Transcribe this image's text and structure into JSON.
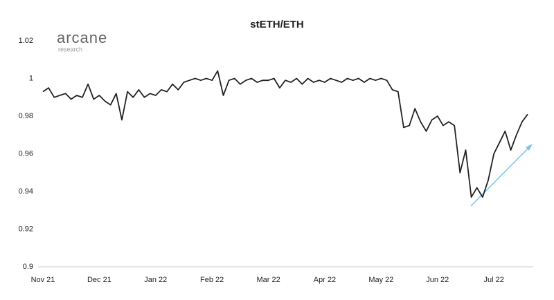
{
  "logo": {
    "name": "arcane",
    "sub": "research"
  },
  "chart_data": {
    "type": "line",
    "title": "stETH/ETH",
    "color": "#222222",
    "categories": [
      "Nov 21",
      null,
      null,
      null,
      null,
      null,
      null,
      null,
      null,
      null,
      "Dec 21",
      null,
      null,
      null,
      null,
      null,
      null,
      null,
      null,
      null,
      "Jan 22",
      null,
      null,
      null,
      null,
      null,
      null,
      null,
      null,
      null,
      "Feb 22",
      null,
      null,
      null,
      null,
      null,
      null,
      null,
      null,
      null,
      "Mar 22",
      null,
      null,
      null,
      null,
      null,
      null,
      null,
      null,
      null,
      "Apr 22",
      null,
      null,
      null,
      null,
      null,
      null,
      null,
      null,
      null,
      "May 22",
      null,
      null,
      null,
      null,
      null,
      null,
      null,
      null,
      null,
      "Jun 22",
      null,
      null,
      null,
      null,
      null,
      null,
      null,
      null,
      null,
      "Jul 22",
      null,
      null,
      null,
      null,
      null,
      null
    ],
    "values": [
      0.993,
      0.995,
      0.99,
      0.991,
      0.992,
      0.989,
      0.991,
      0.99,
      0.997,
      0.989,
      0.991,
      0.988,
      0.986,
      0.992,
      0.978,
      0.993,
      0.99,
      0.994,
      0.99,
      0.992,
      0.991,
      0.994,
      0.993,
      0.997,
      0.994,
      0.998,
      0.999,
      1.0,
      0.999,
      1.0,
      0.999,
      1.004,
      0.991,
      0.999,
      1.0,
      0.997,
      0.999,
      1.0,
      0.998,
      0.999,
      0.999,
      1.0,
      0.995,
      0.999,
      0.998,
      1.0,
      0.997,
      1.0,
      0.998,
      0.999,
      0.998,
      1.0,
      0.999,
      0.998,
      1.0,
      0.999,
      1.0,
      0.998,
      1.0,
      0.999,
      1.0,
      0.999,
      0.994,
      0.993,
      0.974,
      0.975,
      0.984,
      0.977,
      0.972,
      0.978,
      0.98,
      0.975,
      0.977,
      0.975,
      0.95,
      0.962,
      0.937,
      0.942,
      0.937,
      0.946,
      0.96,
      0.966,
      0.972,
      0.962,
      0.97,
      0.977,
      0.981
    ],
    "ylim": [
      0.9,
      1.02
    ],
    "yticks": [
      0.9,
      0.92,
      0.94,
      0.96,
      0.98,
      1,
      1.02
    ]
  }
}
